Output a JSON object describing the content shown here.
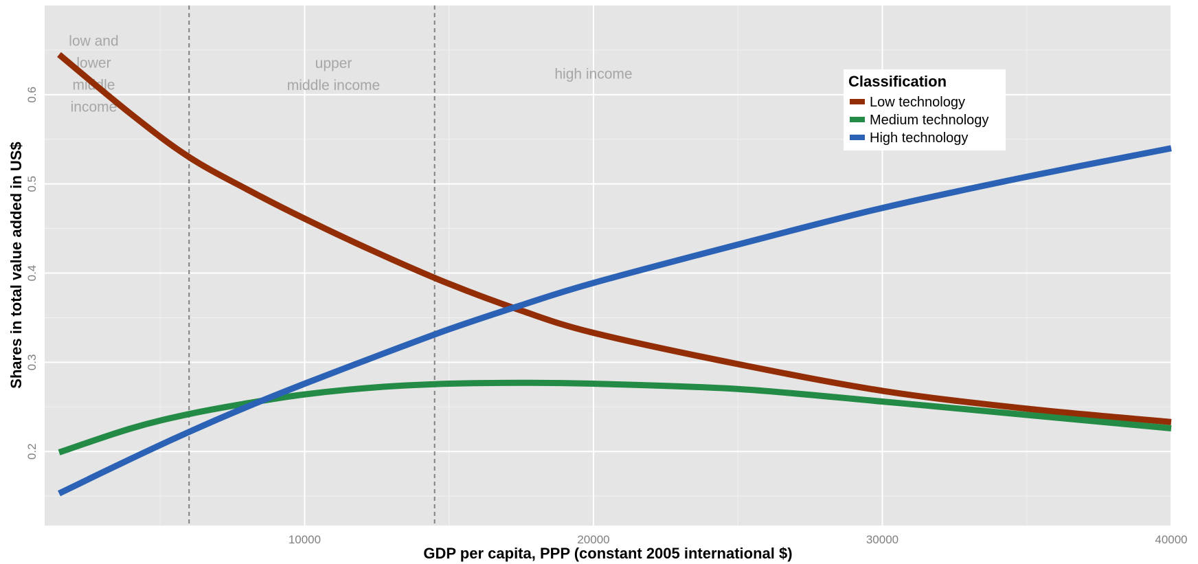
{
  "chart_data": {
    "type": "line",
    "title": "",
    "xlabel": "GDP per capita, PPP (constant 2005 international $)",
    "ylabel": "Shares in total value added in US$",
    "xlim": [
      1000,
      40000
    ],
    "ylim": [
      0.117,
      0.7
    ],
    "x_ticks": [
      10000,
      20000,
      30000,
      40000
    ],
    "x_tick_labels": [
      "10000",
      "20000",
      "30000",
      "40000"
    ],
    "y_ticks": [
      0.2,
      0.3,
      0.4,
      0.5,
      0.6
    ],
    "y_tick_labels": [
      "0.2",
      "0.3",
      "0.4",
      "0.5",
      "0.6"
    ],
    "grid": true,
    "background": "#e5e5e5",
    "thresholds": [
      6000,
      14500
    ],
    "regions": [
      {
        "lines": [
          "low and",
          "lower",
          "middle",
          "income"
        ],
        "x": 2700,
        "y": 0.655
      },
      {
        "lines": [
          "upper",
          "middle income"
        ],
        "x": 11000,
        "y": 0.63
      },
      {
        "lines": [
          "high income"
        ],
        "x": 20000,
        "y": 0.618
      }
    ],
    "legend": {
      "title": "Classification",
      "position": "top-right",
      "entries": [
        "Low technology",
        "Medium technology",
        "High technology"
      ]
    },
    "series": [
      {
        "name": "Low technology",
        "color": "#922d06",
        "x": [
          1500,
          4000,
          6000,
          8000,
          10000,
          12500,
          15000,
          17500,
          20000,
          25000,
          30000,
          35000,
          40000
        ],
        "y": [
          0.645,
          0.578,
          0.53,
          0.494,
          0.461,
          0.423,
          0.388,
          0.358,
          0.333,
          0.298,
          0.268,
          0.248,
          0.233
        ]
      },
      {
        "name": "Medium technology",
        "color": "#238b45",
        "x": [
          1500,
          4000,
          6000,
          8000,
          10000,
          12500,
          15000,
          17500,
          20000,
          25000,
          30000,
          35000,
          40000
        ],
        "y": [
          0.199,
          0.226,
          0.242,
          0.254,
          0.264,
          0.272,
          0.276,
          0.277,
          0.276,
          0.27,
          0.256,
          0.241,
          0.226
        ]
      },
      {
        "name": "High technology",
        "color": "#2b62b5",
        "x": [
          1500,
          4000,
          6000,
          8000,
          10000,
          12500,
          15000,
          17500,
          20000,
          25000,
          30000,
          35000,
          40000
        ],
        "y": [
          0.153,
          0.192,
          0.222,
          0.25,
          0.276,
          0.307,
          0.337,
          0.364,
          0.389,
          0.432,
          0.473,
          0.508,
          0.54
        ]
      }
    ]
  }
}
